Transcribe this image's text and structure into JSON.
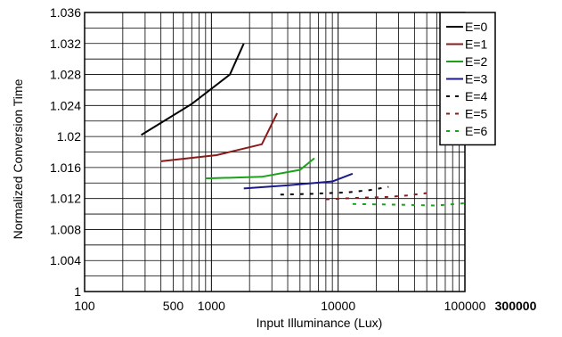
{
  "chart_data": {
    "type": "line",
    "xlabel": "Input Illuminance (Lux)",
    "ylabel": "Normalized Conversion Time",
    "xscale": "log",
    "xlim": [
      100,
      100000
    ],
    "ylim": [
      1,
      1.036
    ],
    "x_tick_labels": [
      {
        "value": 100,
        "label": "100",
        "bold": false
      },
      {
        "value": 500,
        "label": "500",
        "bold": false
      },
      {
        "value": 1000,
        "label": "1000",
        "bold": false
      },
      {
        "value": 10000,
        "label": "10000",
        "bold": false
      },
      {
        "value": 100000,
        "label": "100000",
        "bold": false
      },
      {
        "value": 300000,
        "label": "300000",
        "bold": true
      }
    ],
    "y_tick_labels": [
      {
        "value": 1,
        "label": "1"
      },
      {
        "value": 1.004,
        "label": "1.004"
      },
      {
        "value": 1.008,
        "label": "1.008"
      },
      {
        "value": 1.012,
        "label": "1.012"
      },
      {
        "value": 1.016,
        "label": "1.016"
      },
      {
        "value": 1.02,
        "label": "1.02"
      },
      {
        "value": 1.024,
        "label": "1.024"
      },
      {
        "value": 1.028,
        "label": "1.028"
      },
      {
        "value": 1.032,
        "label": "1.032"
      },
      {
        "value": 1.036,
        "label": "1.036"
      }
    ],
    "grid": true,
    "legend_position": "top-right",
    "series": [
      {
        "name": "E=0",
        "color": "#000000",
        "dash": "solid",
        "points": [
          [
            280,
            1.0202
          ],
          [
            700,
            1.0242
          ],
          [
            1400,
            1.028
          ],
          [
            1800,
            1.032
          ]
        ]
      },
      {
        "name": "E=1",
        "color": "#8b1a1a",
        "dash": "solid",
        "points": [
          [
            400,
            1.0168
          ],
          [
            1100,
            1.0176
          ],
          [
            2500,
            1.019
          ],
          [
            3300,
            1.023
          ]
        ]
      },
      {
        "name": "E=2",
        "color": "#1aa31a",
        "dash": "solid",
        "points": [
          [
            900,
            1.0146
          ],
          [
            2500,
            1.0148
          ],
          [
            5000,
            1.0157
          ],
          [
            6500,
            1.0172
          ]
        ]
      },
      {
        "name": "E=3",
        "color": "#1a1a8b",
        "dash": "solid",
        "points": [
          [
            1800,
            1.0133
          ],
          [
            4000,
            1.0137
          ],
          [
            9000,
            1.0142
          ],
          [
            13000,
            1.0152
          ]
        ]
      },
      {
        "name": "E=4",
        "color": "#000000",
        "dash": "dashed",
        "points": [
          [
            3500,
            1.0125
          ],
          [
            6000,
            1.0126
          ],
          [
            12000,
            1.0128
          ],
          [
            18000,
            1.0131
          ],
          [
            25000,
            1.0135
          ]
        ]
      },
      {
        "name": "E=5",
        "color": "#8b1a1a",
        "dash": "dashed",
        "points": [
          [
            8000,
            1.0119
          ],
          [
            15000,
            1.0121
          ],
          [
            25000,
            1.0122
          ],
          [
            35000,
            1.0124
          ],
          [
            50000,
            1.0127
          ]
        ]
      },
      {
        "name": "E=6",
        "color": "#1aa31a",
        "dash": "dashed",
        "points": [
          [
            13000,
            1.0113
          ],
          [
            30000,
            1.0112
          ],
          [
            60000,
            1.0111
          ],
          [
            100000,
            1.0114
          ]
        ]
      }
    ]
  }
}
